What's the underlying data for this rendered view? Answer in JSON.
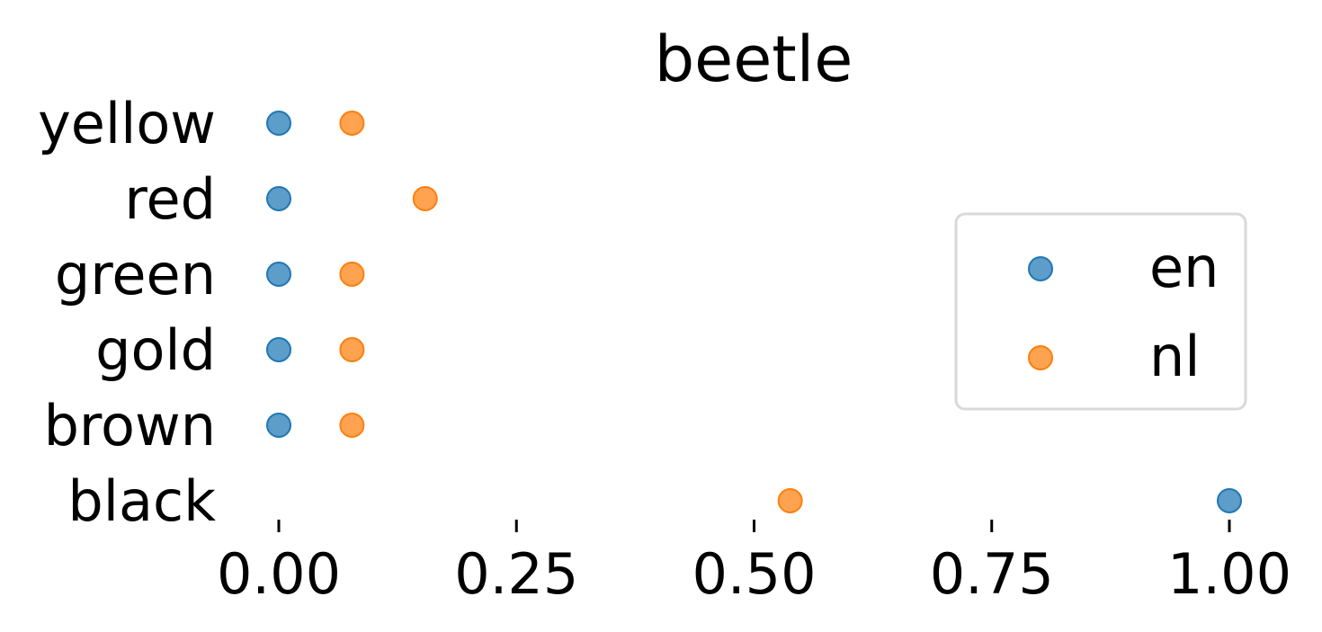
{
  "chart_data": {
    "type": "scatter",
    "title": "beetle",
    "xlabel": "",
    "ylabel": "",
    "categories": [
      "yellow",
      "red",
      "green",
      "gold",
      "brown",
      "black"
    ],
    "xlim": [
      0.0,
      1.0
    ],
    "xticks": [
      "0.00",
      "0.25",
      "0.50",
      "0.75",
      "1.00"
    ],
    "xtick_values": [
      0.0,
      0.25,
      0.5,
      0.75,
      1.0
    ],
    "grid": false,
    "legend_position": "center-right",
    "series": [
      {
        "name": "en",
        "color": "#1f77b4",
        "values": [
          0.0,
          0.0,
          0.0,
          0.0,
          0.0,
          1.0
        ]
      },
      {
        "name": "nl",
        "color": "#ff7f0e",
        "values": [
          0.077,
          0.154,
          0.077,
          0.077,
          0.077,
          0.538
        ]
      }
    ]
  }
}
